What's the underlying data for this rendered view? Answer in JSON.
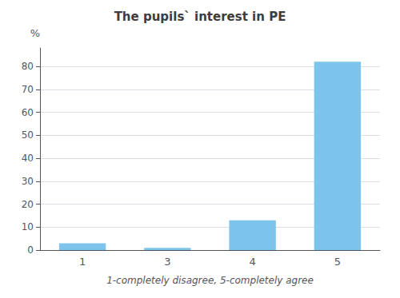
{
  "chart_data": {
    "type": "bar",
    "title": "The pupils` interest in PE",
    "categories": [
      "1",
      "3",
      "4",
      "5"
    ],
    "values": [
      3,
      1,
      13,
      82
    ],
    "color": "#7DC4EC",
    "xlabel": "1-completely disagree, 5-completely agree",
    "ylabel": "%",
    "ylim": [
      0,
      88
    ],
    "yticks": [
      0,
      10,
      20,
      30,
      40,
      50,
      60,
      70,
      80
    ],
    "grid": true
  }
}
